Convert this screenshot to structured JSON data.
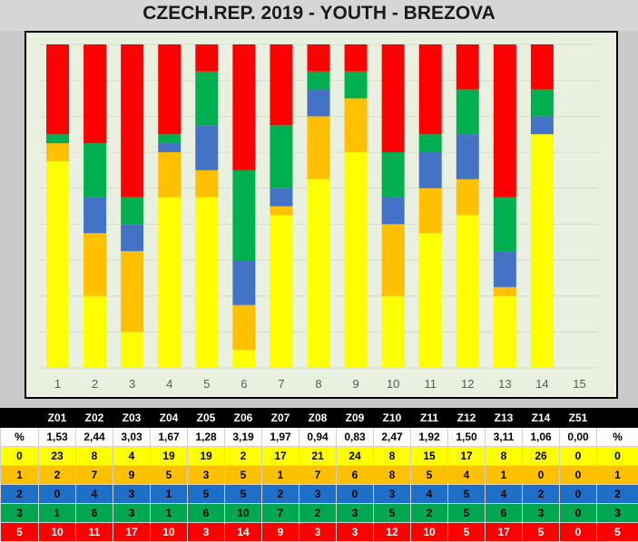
{
  "title": "CZECH.REP. 2019 - YOUTH - BREZOVA",
  "colors": {
    "score_0": "#ffff00",
    "score_1": "#ffc000",
    "score_2": "#4472c4",
    "score_3": "#00b050",
    "score_5": "#ff0000",
    "plot_background": "#eaf0df"
  },
  "chart_data": {
    "type": "bar",
    "stacked": true,
    "categories": [
      "1",
      "2",
      "3",
      "4",
      "5",
      "6",
      "7",
      "8",
      "9",
      "10",
      "11",
      "12",
      "13",
      "14",
      "15"
    ],
    "series": [
      {
        "name": "0",
        "values": [
          23,
          8,
          4,
          19,
          19,
          2,
          17,
          21,
          24,
          8,
          15,
          17,
          8,
          26,
          0
        ]
      },
      {
        "name": "1",
        "values": [
          2,
          7,
          9,
          5,
          3,
          5,
          1,
          7,
          6,
          8,
          5,
          4,
          1,
          0,
          0
        ]
      },
      {
        "name": "2",
        "values": [
          0,
          4,
          3,
          1,
          5,
          5,
          2,
          3,
          0,
          3,
          4,
          5,
          4,
          2,
          0
        ]
      },
      {
        "name": "3",
        "values": [
          1,
          6,
          3,
          1,
          6,
          10,
          7,
          2,
          3,
          5,
          2,
          5,
          6,
          3,
          0
        ]
      },
      {
        "name": "5",
        "values": [
          10,
          11,
          17,
          10,
          3,
          14,
          9,
          3,
          3,
          12,
          10,
          5,
          17,
          5,
          0
        ]
      }
    ],
    "ylim": [
      0,
      36
    ],
    "grid": true
  },
  "table": {
    "header": [
      "",
      "Z01",
      "Z02",
      "Z03",
      "Z04",
      "Z05",
      "Z06",
      "Z07",
      "Z08",
      "Z09",
      "Z10",
      "Z11",
      "Z12",
      "Z13",
      "Z14",
      "Z51",
      ""
    ],
    "rows": [
      {
        "cls": "pct",
        "cells": [
          "%",
          "1,53",
          "2,44",
          "3,03",
          "1,67",
          "1,28",
          "3,19",
          "1,97",
          "0,94",
          "0,83",
          "2,47",
          "1,92",
          "1,50",
          "3,11",
          "1,06",
          "0,00",
          "%"
        ]
      },
      {
        "cls": "r0",
        "cells": [
          "0",
          "23",
          "8",
          "4",
          "19",
          "19",
          "2",
          "17",
          "21",
          "24",
          "8",
          "15",
          "17",
          "8",
          "26",
          "0",
          "0"
        ]
      },
      {
        "cls": "r1",
        "cells": [
          "1",
          "2",
          "7",
          "9",
          "5",
          "3",
          "5",
          "1",
          "7",
          "6",
          "8",
          "5",
          "4",
          "1",
          "0",
          "0",
          "1"
        ]
      },
      {
        "cls": "r2",
        "cells": [
          "2",
          "0",
          "4",
          "3",
          "1",
          "5",
          "5",
          "2",
          "3",
          "0",
          "3",
          "4",
          "5",
          "4",
          "2",
          "0",
          "2"
        ]
      },
      {
        "cls": "r3",
        "cells": [
          "3",
          "1",
          "6",
          "3",
          "1",
          "6",
          "10",
          "7",
          "2",
          "3",
          "5",
          "2",
          "5",
          "6",
          "3",
          "0",
          "3"
        ]
      },
      {
        "cls": "r5",
        "cells": [
          "5",
          "10",
          "11",
          "17",
          "10",
          "3",
          "14",
          "9",
          "3",
          "3",
          "12",
          "10",
          "5",
          "17",
          "5",
          "0",
          "5"
        ]
      }
    ]
  }
}
